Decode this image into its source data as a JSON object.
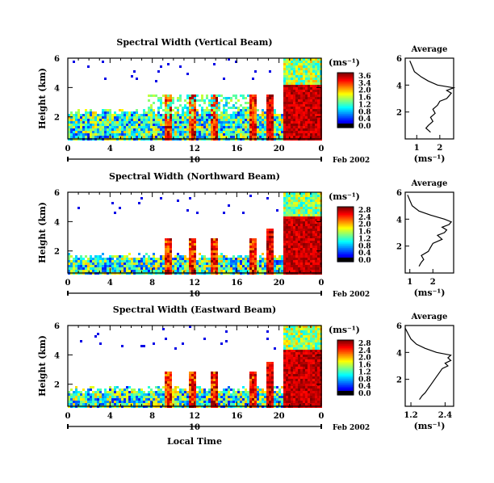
{
  "chart_data": [
    {
      "type": "heatmap",
      "title": "Spectral Width (Vertical Beam)",
      "ylabel": "Height (km)",
      "yticks": [
        "2",
        "4",
        "6"
      ],
      "xticks": [
        "0",
        "4",
        "8",
        "12",
        "16",
        "20",
        "0"
      ],
      "xlim": [
        0,
        24
      ],
      "ylim": [
        0.5,
        6
      ],
      "date_marker": "10",
      "date_label": "Feb 2002",
      "colorbar": {
        "unit": "(ms⁻¹)",
        "ticks": [
          "3.6",
          "3.4",
          "2.0",
          "1.6",
          "1.2",
          "0.8",
          "0.4",
          "0.0"
        ]
      },
      "average": {
        "title": "Average",
        "xlabel": "(ms⁻¹)",
        "xticks": [
          "1",
          "2"
        ],
        "xlim": [
          0.5,
          2.6
        ],
        "ylim": [
          0,
          6
        ],
        "yticks": [
          "2",
          "4",
          "6"
        ],
        "heights": [
          0.5,
          0.8,
          1.0,
          1.3,
          1.6,
          1.9,
          2.2,
          2.5,
          2.8,
          3.0,
          3.2,
          3.4,
          3.6,
          3.8,
          4.0,
          4.3,
          4.6,
          5.0,
          5.4,
          5.8
        ],
        "values": [
          1.6,
          1.4,
          1.5,
          1.7,
          1.6,
          1.8,
          1.7,
          1.9,
          2.0,
          2.3,
          2.4,
          2.5,
          2.3,
          2.6,
          1.9,
          1.5,
          1.2,
          0.9,
          0.8,
          0.7
        ]
      }
    },
    {
      "type": "heatmap",
      "title": "Spectral Width (Northward Beam)",
      "ylabel": "Height (km)",
      "yticks": [
        "2",
        "4",
        "6"
      ],
      "xticks": [
        "0",
        "4",
        "8",
        "12",
        "16",
        "20",
        "0"
      ],
      "xlim": [
        0,
        24
      ],
      "ylim": [
        0.5,
        6
      ],
      "date_marker": "10",
      "date_label": "Feb 2002",
      "colorbar": {
        "unit": "(ms⁻¹)",
        "ticks": [
          "2.8",
          "2.4",
          "2.0",
          "1.6",
          "1.2",
          "0.8",
          "0.4",
          "0.0"
        ]
      },
      "average": {
        "title": "Average",
        "xlabel": "(ms⁻¹)",
        "xticks": [
          "1",
          "2"
        ],
        "xlim": [
          0.8,
          2.9
        ],
        "ylim": [
          0,
          6
        ],
        "yticks": [
          "2",
          "4",
          "6"
        ],
        "heights": [
          0.5,
          0.8,
          1.0,
          1.3,
          1.6,
          1.9,
          2.2,
          2.5,
          2.8,
          3.0,
          3.2,
          3.4,
          3.6,
          3.8,
          4.0,
          4.3,
          4.6,
          5.0,
          5.4,
          5.8
        ],
        "values": [
          1.4,
          1.5,
          1.6,
          1.5,
          1.8,
          1.9,
          2.0,
          2.4,
          2.2,
          2.5,
          2.6,
          2.4,
          2.7,
          2.8,
          2.5,
          1.9,
          1.4,
          1.1,
          1.0,
          0.9
        ]
      }
    },
    {
      "type": "heatmap",
      "title": "Spectral Width (Eastward Beam)",
      "ylabel": "Height (km)",
      "yticks": [
        "2",
        "4",
        "6"
      ],
      "xticks": [
        "0",
        "4",
        "8",
        "12",
        "16",
        "20",
        "0"
      ],
      "xlim": [
        0,
        24
      ],
      "ylim": [
        0.5,
        6
      ],
      "date_marker": "10",
      "date_label": "Feb 2002",
      "xlabel": "Local Time",
      "colorbar": {
        "unit": "(ms⁻¹)",
        "ticks": [
          "2.8",
          "2.4",
          "2.0",
          "1.6",
          "1.2",
          "0.8",
          "0.4",
          "0.0"
        ]
      },
      "average": {
        "title": "Average",
        "xlabel": "(ms⁻¹)",
        "xticks": [
          "1.2",
          "2.4"
        ],
        "xlim": [
          1.0,
          2.7
        ],
        "ylim": [
          0,
          6
        ],
        "yticks": [
          "2",
          "4",
          "6"
        ],
        "heights": [
          0.5,
          0.8,
          1.0,
          1.3,
          1.6,
          1.9,
          2.2,
          2.5,
          2.8,
          3.0,
          3.2,
          3.4,
          3.6,
          3.8,
          4.0,
          4.3,
          4.6,
          5.0,
          5.4,
          5.8
        ],
        "values": [
          1.5,
          1.6,
          1.7,
          1.8,
          1.9,
          2.0,
          2.1,
          2.2,
          2.3,
          2.5,
          2.4,
          2.6,
          2.5,
          2.6,
          2.1,
          1.7,
          1.4,
          1.2,
          1.1,
          1.0
        ]
      }
    }
  ]
}
